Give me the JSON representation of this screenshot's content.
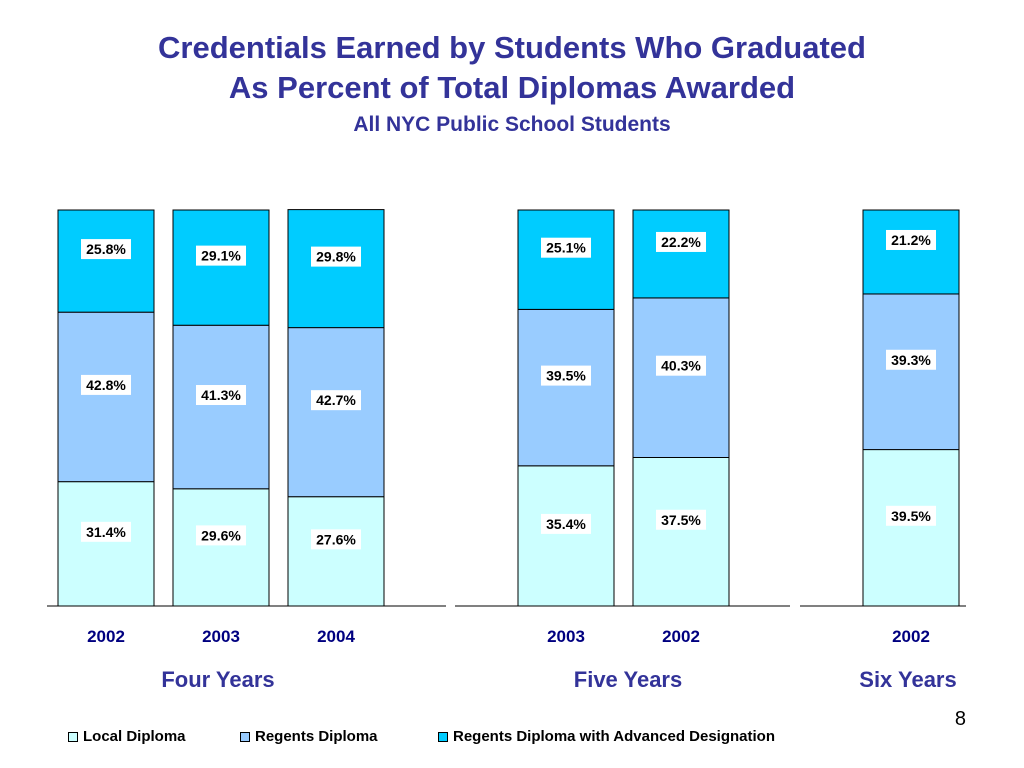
{
  "title": {
    "line1": "Credentials Earned by Students Who Graduated",
    "line2": "As Percent of Total Diplomas Awarded",
    "subtitle": "All NYC Public School Students"
  },
  "page_number": "8",
  "colors": {
    "local": "#CCFFFF",
    "regents": "#99CCFF",
    "advanced": "#00CCFF",
    "group_label": "#333399",
    "year_label": "#000080"
  },
  "chart_data": {
    "type": "bar",
    "stacked": true,
    "normalized_percent": true,
    "ylim": [
      0,
      100
    ],
    "grid": false,
    "legend_position": "bottom",
    "series": [
      {
        "name": "Local Diploma",
        "color": "#CCFFFF"
      },
      {
        "name": "Regents Diploma",
        "color": "#99CCFF"
      },
      {
        "name": "Regents Diploma with Advanced Designation",
        "color": "#00CCFF"
      }
    ],
    "groups": [
      {
        "label": "Four Years",
        "bars": [
          {
            "year": "2002",
            "values": [
              31.4,
              42.8,
              25.8
            ],
            "labels": [
              "31.4%",
              "42.8%",
              "25.8%"
            ]
          },
          {
            "year": "2003",
            "values": [
              29.6,
              41.3,
              29.1
            ],
            "labels": [
              "29.6%",
              "41.3%",
              "29.1%"
            ]
          },
          {
            "year": "2004",
            "values": [
              27.6,
              42.7,
              29.8
            ],
            "labels": [
              "27.6%",
              "42.7%",
              "29.8%"
            ]
          }
        ]
      },
      {
        "label": "Five Years",
        "bars": [
          {
            "year": "2003",
            "values": [
              35.4,
              39.5,
              25.1
            ],
            "labels": [
              "35.4%",
              "39.5%",
              "25.1%"
            ]
          },
          {
            "year": "2002",
            "values": [
              37.5,
              40.3,
              22.2
            ],
            "labels": [
              "37.5%",
              "40.3%",
              "22.2%"
            ]
          }
        ]
      },
      {
        "label": "Six Years",
        "bars": [
          {
            "year": "2002",
            "values": [
              39.5,
              39.3,
              21.2
            ],
            "labels": [
              "39.5%",
              "39.3%",
              "21.2%"
            ]
          }
        ]
      }
    ]
  }
}
